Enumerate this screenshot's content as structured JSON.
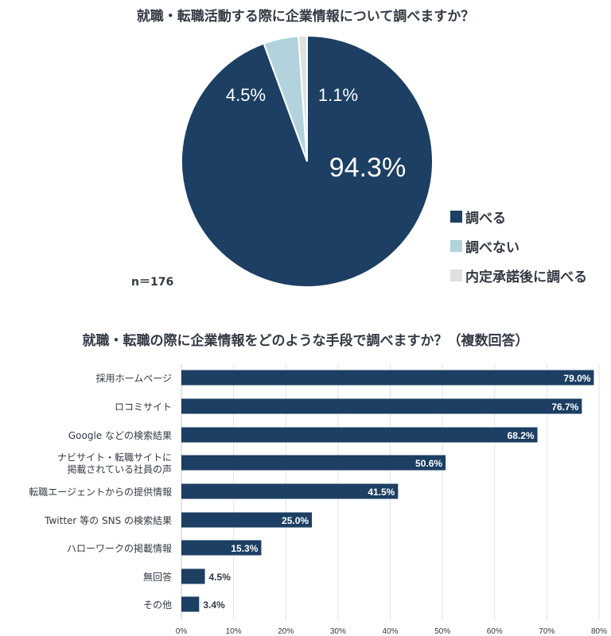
{
  "pie_title": "就職・転職活動する際に企業情報について調べますか？",
  "bar_title": "就職・転職の際に企業情報をどのような手段で調べますか？（複数回答）",
  "sample_size": "n＝176",
  "colors": {
    "navy": "#1c3f63",
    "light_blue": "#b3d3dc",
    "light_gray": "#e0e0e0",
    "grid": "#e3e3e3"
  },
  "chart_data": [
    {
      "type": "pie",
      "title": "就職・転職活動する際に企業情報について調べますか？",
      "slices": [
        {
          "name": "調べる",
          "value": 94.3,
          "label": "94.3%",
          "color": "#1c3f63"
        },
        {
          "name": "調べない",
          "value": 4.5,
          "label": "4.5%",
          "color": "#b3d3dc"
        },
        {
          "name": "内定承諾後に調べる",
          "value": 1.1,
          "label": "1.1%",
          "color": "#e0e0e0"
        }
      ],
      "legend_position": "right"
    },
    {
      "type": "bar",
      "orientation": "horizontal",
      "title": "就職・転職の際に企業情報をどのような手段で調べますか？（複数回答）",
      "categories": [
        [
          "採用ホームページ"
        ],
        [
          "ロコミサイト"
        ],
        [
          "Google などの検索結果"
        ],
        [
          "ナビサイト・転職サイトに",
          "掲載されている社員の声"
        ],
        [
          "転職エージェントからの提供情報"
        ],
        [
          "Twitter 等の SNS の検索結果"
        ],
        [
          "ハローワークの掲載情報"
        ],
        [
          "無回答"
        ],
        [
          "その他"
        ]
      ],
      "values": [
        79.0,
        76.7,
        68.2,
        50.6,
        41.5,
        25.0,
        15.3,
        4.5,
        3.4
      ],
      "value_labels": [
        "79.0%",
        "76.7%",
        "68.2%",
        "50.6%",
        "41.5%",
        "25.0%",
        "15.3%",
        "4.5%",
        "3.4%"
      ],
      "xlim": [
        0,
        80
      ],
      "xticks": [
        "0%",
        "10%",
        "20%",
        "30%",
        "40%",
        "50%",
        "60%",
        "70%",
        "80%"
      ],
      "grid": true,
      "color": "#1c3f63"
    }
  ]
}
